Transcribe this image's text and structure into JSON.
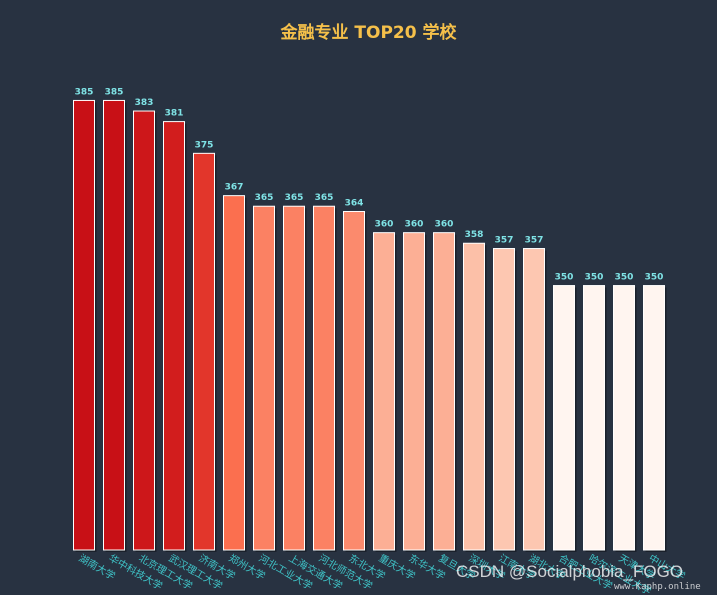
{
  "chart_data": {
    "type": "bar",
    "title": "金融专业 TOP20 学校",
    "categories": [
      "湖南大学",
      "华中科技大学",
      "北京理工大学",
      "武汉理工大学",
      "济南大学",
      "郑州大学",
      "河北工业大学",
      "上海交通大学",
      "河北师范大学",
      "东北大学",
      "重庆大学",
      "东华大学",
      "复旦大学",
      "深圳大学",
      "江南大学",
      "湖北大学",
      "合肥工业大学",
      "哈尔滨工业大学",
      "天津大学",
      "中山大学"
    ],
    "values": [
      385,
      385,
      383,
      381,
      375,
      367,
      365,
      365,
      365,
      364,
      360,
      360,
      360,
      358,
      357,
      357,
      350,
      350,
      350,
      350
    ],
    "ylim": [
      300,
      390
    ],
    "grid": false,
    "legend": "none",
    "colors": {
      "title": "#f5c04a",
      "value_label": "#7fe3e6",
      "axis_label": "#3fc4c8",
      "background": "#283241",
      "bar_stroke": "#ffffff"
    }
  },
  "watermark": {
    "line1": "CSDN @Socialphobia_FOGO",
    "line2": "www.Kaphp.online"
  }
}
